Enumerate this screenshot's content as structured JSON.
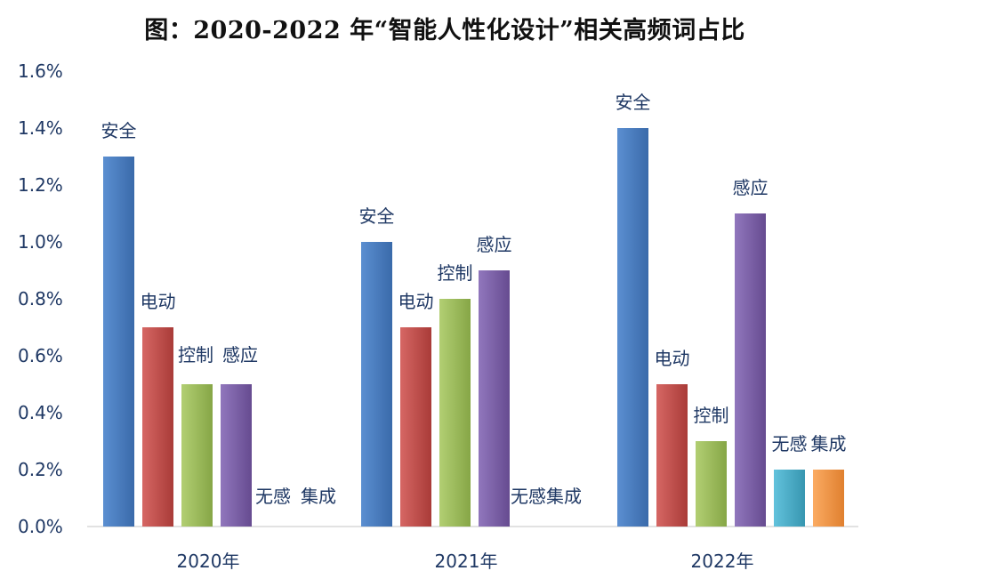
{
  "title": "图：2020-2022 年“智能人性化设计”相关高频词占比",
  "chart_data": {
    "type": "bar",
    "title": "图：2020-2022 年“智能人性化设计”相关高频词占比",
    "categories": [
      "2020年",
      "2021年",
      "2022年"
    ],
    "series": [
      {
        "name": "安全",
        "values": [
          1.3,
          1.0,
          1.4
        ],
        "color": "#4a7ebf"
      },
      {
        "name": "电动",
        "values": [
          0.7,
          0.7,
          0.5
        ],
        "color": "#c0504d"
      },
      {
        "name": "控制",
        "values": [
          0.5,
          0.8,
          0.3
        ],
        "color": "#9bbb59"
      },
      {
        "name": "感应",
        "values": [
          0.5,
          0.9,
          1.1
        ],
        "color": "#7b5fa6"
      },
      {
        "name": "无感",
        "values": [
          0.0,
          0.0,
          0.2
        ],
        "color": "#4bacc6"
      },
      {
        "name": "集成",
        "values": [
          0.0,
          0.0,
          0.2
        ],
        "color": "#f79646"
      }
    ],
    "ylim": [
      0,
      1.6
    ],
    "yticks": [
      "0.0%",
      "0.2%",
      "0.4%",
      "0.6%",
      "0.8%",
      "1.0%",
      "1.2%",
      "1.4%",
      "1.6%"
    ],
    "grid": false,
    "legend": "none",
    "annotations": [
      {
        "text": "无感",
        "category": "2020年"
      },
      {
        "text": "集成",
        "category": "2020年"
      },
      {
        "text": "无感集成",
        "category": "2021年"
      }
    ]
  }
}
